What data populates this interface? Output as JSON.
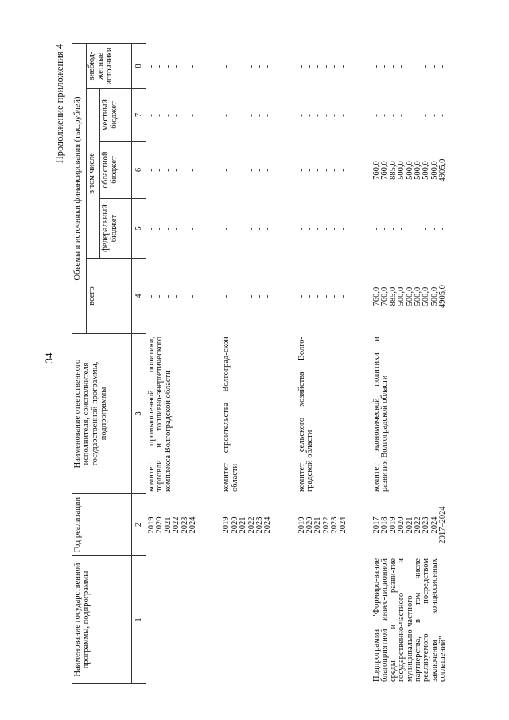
{
  "page_number": "34",
  "continuation": "Продолжение приложения 4",
  "header": {
    "col1": "Наименование государственной программы, подпрограммы",
    "col2": "Год реализации",
    "col3": "Наименование ответственного исполнителя, соисполнителя государственной программы, подпрограммы",
    "funding": "Объемы и источники финансирования (тыс.рублей)",
    "total": "всего",
    "including": "в том числе",
    "federal": "федеральный бюджет",
    "regional": "областной бюджет",
    "local": "местный бюджет",
    "extra": "внебюд-жетные источники",
    "numbers": [
      "1",
      "2",
      "3",
      "4",
      "5",
      "6",
      "7",
      "8"
    ]
  },
  "groups": [
    {
      "program": "",
      "executor": "комитет промышленной политики, торговли и топливно-энергетического комплекса Волгоградской области",
      "rows": [
        {
          "year": "2019",
          "total": "-",
          "federal": "-",
          "regional": "-",
          "local": "-",
          "extra": "-"
        },
        {
          "year": "2020",
          "total": "-",
          "federal": "-",
          "regional": "-",
          "local": "-",
          "extra": "-"
        },
        {
          "year": "2021",
          "total": "-",
          "federal": "-",
          "regional": "-",
          "local": "-",
          "extra": "-"
        },
        {
          "year": "2022",
          "total": "-",
          "federal": "-",
          "regional": "-",
          "local": "-",
          "extra": "-"
        },
        {
          "year": "2023",
          "total": "-",
          "federal": "-",
          "regional": "-",
          "local": "-",
          "extra": "-"
        },
        {
          "year": "2024",
          "total": "-",
          "federal": "-",
          "regional": "-",
          "local": "-",
          "extra": "-"
        }
      ]
    },
    {
      "program": "",
      "executor": "комитет строительства Волгоград-ской области",
      "rows": [
        {
          "year": "2019",
          "total": "-",
          "federal": "-",
          "regional": "-",
          "local": "-",
          "extra": "-"
        },
        {
          "year": "2020",
          "total": "-",
          "federal": "-",
          "regional": "-",
          "local": "-",
          "extra": "-"
        },
        {
          "year": "2021",
          "total": "-",
          "federal": "-",
          "regional": "-",
          "local": "-",
          "extra": "-"
        },
        {
          "year": "2022",
          "total": "-",
          "federal": "-",
          "regional": "-",
          "local": "-",
          "extra": "-"
        },
        {
          "year": "2023",
          "total": "-",
          "federal": "-",
          "regional": "-",
          "local": "-",
          "extra": "-"
        },
        {
          "year": "2024",
          "total": "-",
          "federal": "-",
          "regional": "-",
          "local": "-",
          "extra": "-"
        }
      ]
    },
    {
      "program": "",
      "executor": "комитет сельского хозяйства Волго-градской области",
      "rows": [
        {
          "year": "2019",
          "total": "-",
          "federal": "-",
          "regional": "-",
          "local": "-",
          "extra": "-"
        },
        {
          "year": "2020",
          "total": "-",
          "federal": "-",
          "regional": "-",
          "local": "-",
          "extra": "-"
        },
        {
          "year": "2021",
          "total": "-",
          "federal": "-",
          "regional": "-",
          "local": "-",
          "extra": "-"
        },
        {
          "year": "2022",
          "total": "-",
          "federal": "-",
          "regional": "-",
          "local": "-",
          "extra": "-"
        },
        {
          "year": "2023",
          "total": "-",
          "federal": "-",
          "regional": "-",
          "local": "-",
          "extra": "-"
        },
        {
          "year": "2024",
          "total": "-",
          "federal": "-",
          "regional": "-",
          "local": "-",
          "extra": "-"
        }
      ]
    },
    {
      "program": "Подпрограмма \"Формиро-вание благоприятной инвес-тиционной среды и разви-тие государственно-частного и муниципально-частного партнерства, в том числе реализуемого посредством заключения концессионных соглашений\"",
      "executor": "комитет экономической политики и развития Волгоградской области",
      "rows": [
        {
          "year": "2017",
          "total": "760,0",
          "federal": "-",
          "regional": "760,0",
          "local": "-",
          "extra": "-"
        },
        {
          "year": "2018",
          "total": "760,0",
          "federal": "-",
          "regional": "760,0",
          "local": "-",
          "extra": "-"
        },
        {
          "year": "2019",
          "total": "885,0",
          "federal": "-",
          "regional": "885,0",
          "local": "-",
          "extra": "-"
        },
        {
          "year": "2020",
          "total": "500,0",
          "federal": "-",
          "regional": "500,0",
          "local": "-",
          "extra": "-"
        },
        {
          "year": "2021",
          "total": "500,0",
          "federal": "-",
          "regional": "500,0",
          "local": "-",
          "extra": "-"
        },
        {
          "year": "2022",
          "total": "500,0",
          "federal": "-",
          "regional": "500,0",
          "local": "-",
          "extra": "-"
        },
        {
          "year": "2023",
          "total": "500,0",
          "federal": "-",
          "regional": "500,0",
          "local": "-",
          "extra": "-"
        },
        {
          "year": "2024",
          "total": "500,0",
          "federal": "-",
          "regional": "500,0",
          "local": "-",
          "extra": "-"
        },
        {
          "year": "2017–2024",
          "total": "4905,0",
          "federal": "-",
          "regional": "4905,0",
          "local": "-",
          "extra": "-"
        }
      ]
    }
  ]
}
